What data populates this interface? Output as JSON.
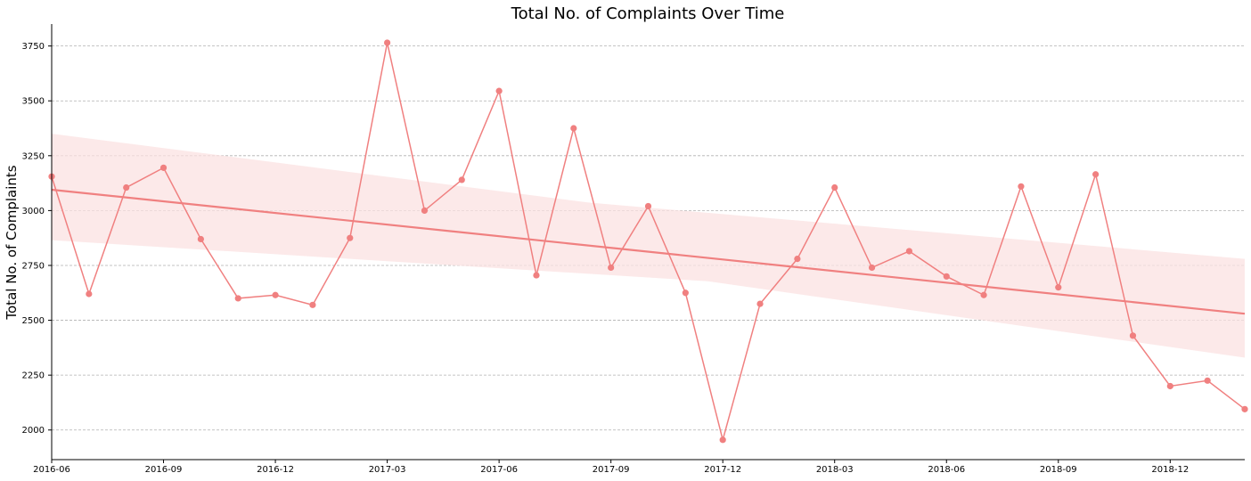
{
  "chart_data": {
    "type": "line",
    "title": "Total No. of Complaints Over Time",
    "xlabel": "",
    "ylabel": "Total No. of Complaints",
    "x_ticks": [
      "2016-06",
      "2016-09",
      "2016-12",
      "2017-03",
      "2017-06",
      "2017-09",
      "2017-12",
      "2018-03",
      "2018-06",
      "2018-09",
      "2018-12"
    ],
    "y_ticks": [
      2000,
      2250,
      2500,
      2750,
      3000,
      3250,
      3500,
      3750
    ],
    "ylim": [
      1865,
      3850
    ],
    "xlim": [
      "2016-06",
      "2019-02"
    ],
    "grid": "horizontal dashed",
    "colors": {
      "series": "#f08080",
      "band": "#fbe2e2",
      "grid": "#b0b0b0",
      "axis": "#000000"
    },
    "x": [
      "2016-06",
      "2016-07",
      "2016-08",
      "2016-09",
      "2016-10",
      "2016-11",
      "2016-12",
      "2017-01",
      "2017-02",
      "2017-03",
      "2017-04",
      "2017-05",
      "2017-06",
      "2017-07",
      "2017-08",
      "2017-09",
      "2017-10",
      "2017-11",
      "2017-12",
      "2018-01",
      "2018-02",
      "2018-03",
      "2018-04",
      "2018-05",
      "2018-06",
      "2018-07",
      "2018-08",
      "2018-09",
      "2018-10",
      "2018-11",
      "2018-12",
      "2019-01",
      "2019-02"
    ],
    "series": [
      {
        "values": [
          3155,
          2620,
          3105,
          3195,
          2870,
          2600,
          2615,
          2570,
          2875,
          3765,
          3000,
          3140,
          3545,
          2705,
          3375,
          2740,
          3020,
          2625,
          1955,
          2575,
          2780,
          3105,
          2740,
          2815,
          2700,
          2615,
          3110,
          2650,
          3165,
          2430,
          2200,
          2225,
          2095
        ]
      }
    ],
    "regression": {
      "start": {
        "x": "2016-06",
        "y": 3095
      },
      "end": {
        "x": "2019-02",
        "y": 2530
      },
      "ci_lower": [
        2865,
        2330
      ],
      "ci_upper": [
        3350,
        2780
      ]
    }
  }
}
